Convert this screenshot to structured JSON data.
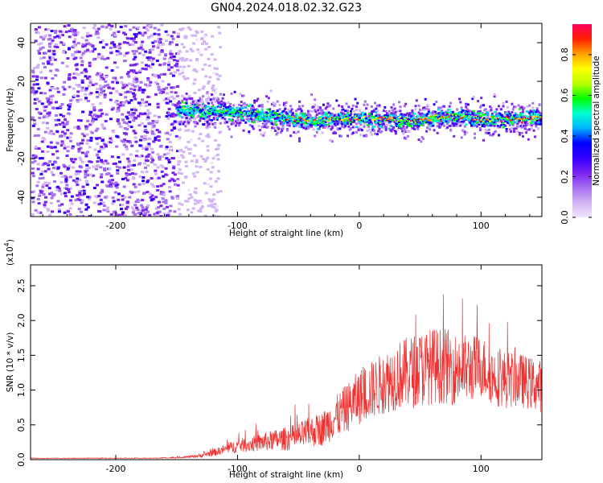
{
  "figure_title": "GN04.2024.018.02.32.G23",
  "chart_data": [
    {
      "type": "heatmap",
      "title": "",
      "xlabel": "Height of straight line (km)",
      "ylabel": "Frequency (Hz)",
      "xlim": [
        -270,
        150
      ],
      "ylim": [
        -50,
        50
      ],
      "xticks": [
        -200,
        -100,
        0,
        100
      ],
      "yticks": [
        -40,
        -20,
        0,
        20,
        40
      ],
      "colorbar": {
        "label": "Normalized spectral amplitude",
        "range": [
          0.0,
          0.95
        ],
        "ticks": [
          0.0,
          0.2,
          0.4,
          0.6,
          0.8
        ],
        "colors": [
          "#efe4fb",
          "#d2b4f4",
          "#a56ef0",
          "#7a22f0",
          "#3300ff",
          "#0000ff",
          "#00b4ff",
          "#00ffd0",
          "#00ff00",
          "#b8ff00",
          "#ffff00",
          "#ffa000",
          "#ff2000",
          "#ff0060"
        ]
      },
      "ridge": [
        {
          "x": -150,
          "y": 6
        },
        {
          "x": -120,
          "y": 5
        },
        {
          "x": -100,
          "y": 4
        },
        {
          "x": -80,
          "y": 3
        },
        {
          "x": -60,
          "y": 1.5
        },
        {
          "x": -40,
          "y": 0
        },
        {
          "x": -20,
          "y": 1
        },
        {
          "x": 0,
          "y": 1
        },
        {
          "x": 20,
          "y": 0.5
        },
        {
          "x": 40,
          "y": 0
        },
        {
          "x": 60,
          "y": 1.5
        },
        {
          "x": 80,
          "y": 2.5
        },
        {
          "x": 100,
          "y": 1
        },
        {
          "x": 120,
          "y": 1
        },
        {
          "x": 140,
          "y": 1.5
        }
      ]
    },
    {
      "type": "line",
      "title": "",
      "xlabel": "Height of straight line (km)",
      "ylabel": "SNR (10 * v/v)",
      "scale_label": "(x10",
      "scale_exponent": "4",
      "scale_suffix": ")",
      "xlim": [
        -270,
        150
      ],
      "ylim": [
        0,
        2.8
      ],
      "xticks": [
        -200,
        -100,
        0,
        100
      ],
      "yticks": [
        "0.0",
        "0.5",
        "1.0",
        "1.5",
        "2.0",
        "2.5"
      ],
      "line_color": "#ef3030",
      "series": [
        {
          "x": [
            -270,
            -250,
            -230,
            -210,
            -190,
            -170,
            -150,
            -140,
            -130,
            -120,
            -110,
            -100,
            -90,
            -80,
            -70,
            -60,
            -50,
            -40,
            -30,
            -20,
            -10,
            0,
            10,
            20,
            30,
            40,
            50,
            60,
            70,
            80,
            90,
            100,
            110,
            120,
            130,
            140,
            150
          ],
          "y": [
            0.02,
            0.02,
            0.02,
            0.02,
            0.02,
            0.02,
            0.03,
            0.04,
            0.06,
            0.1,
            0.15,
            0.2,
            0.22,
            0.25,
            0.28,
            0.3,
            0.33,
            0.4,
            0.45,
            0.6,
            0.75,
            0.9,
            1.0,
            1.1,
            1.2,
            1.25,
            1.3,
            1.35,
            1.35,
            1.3,
            1.3,
            1.35,
            1.2,
            1.15,
            1.15,
            1.1,
            1.05
          ],
          "noise": [
            0.005,
            0.005,
            0.005,
            0.005,
            0.005,
            0.005,
            0.01,
            0.015,
            0.03,
            0.05,
            0.07,
            0.1,
            0.11,
            0.13,
            0.15,
            0.17,
            0.2,
            0.22,
            0.25,
            0.3,
            0.35,
            0.4,
            0.42,
            0.45,
            0.5,
            0.52,
            0.55,
            0.55,
            0.55,
            0.52,
            0.5,
            0.45,
            0.42,
            0.42,
            0.4,
            0.38,
            0.38
          ]
        }
      ]
    }
  ]
}
